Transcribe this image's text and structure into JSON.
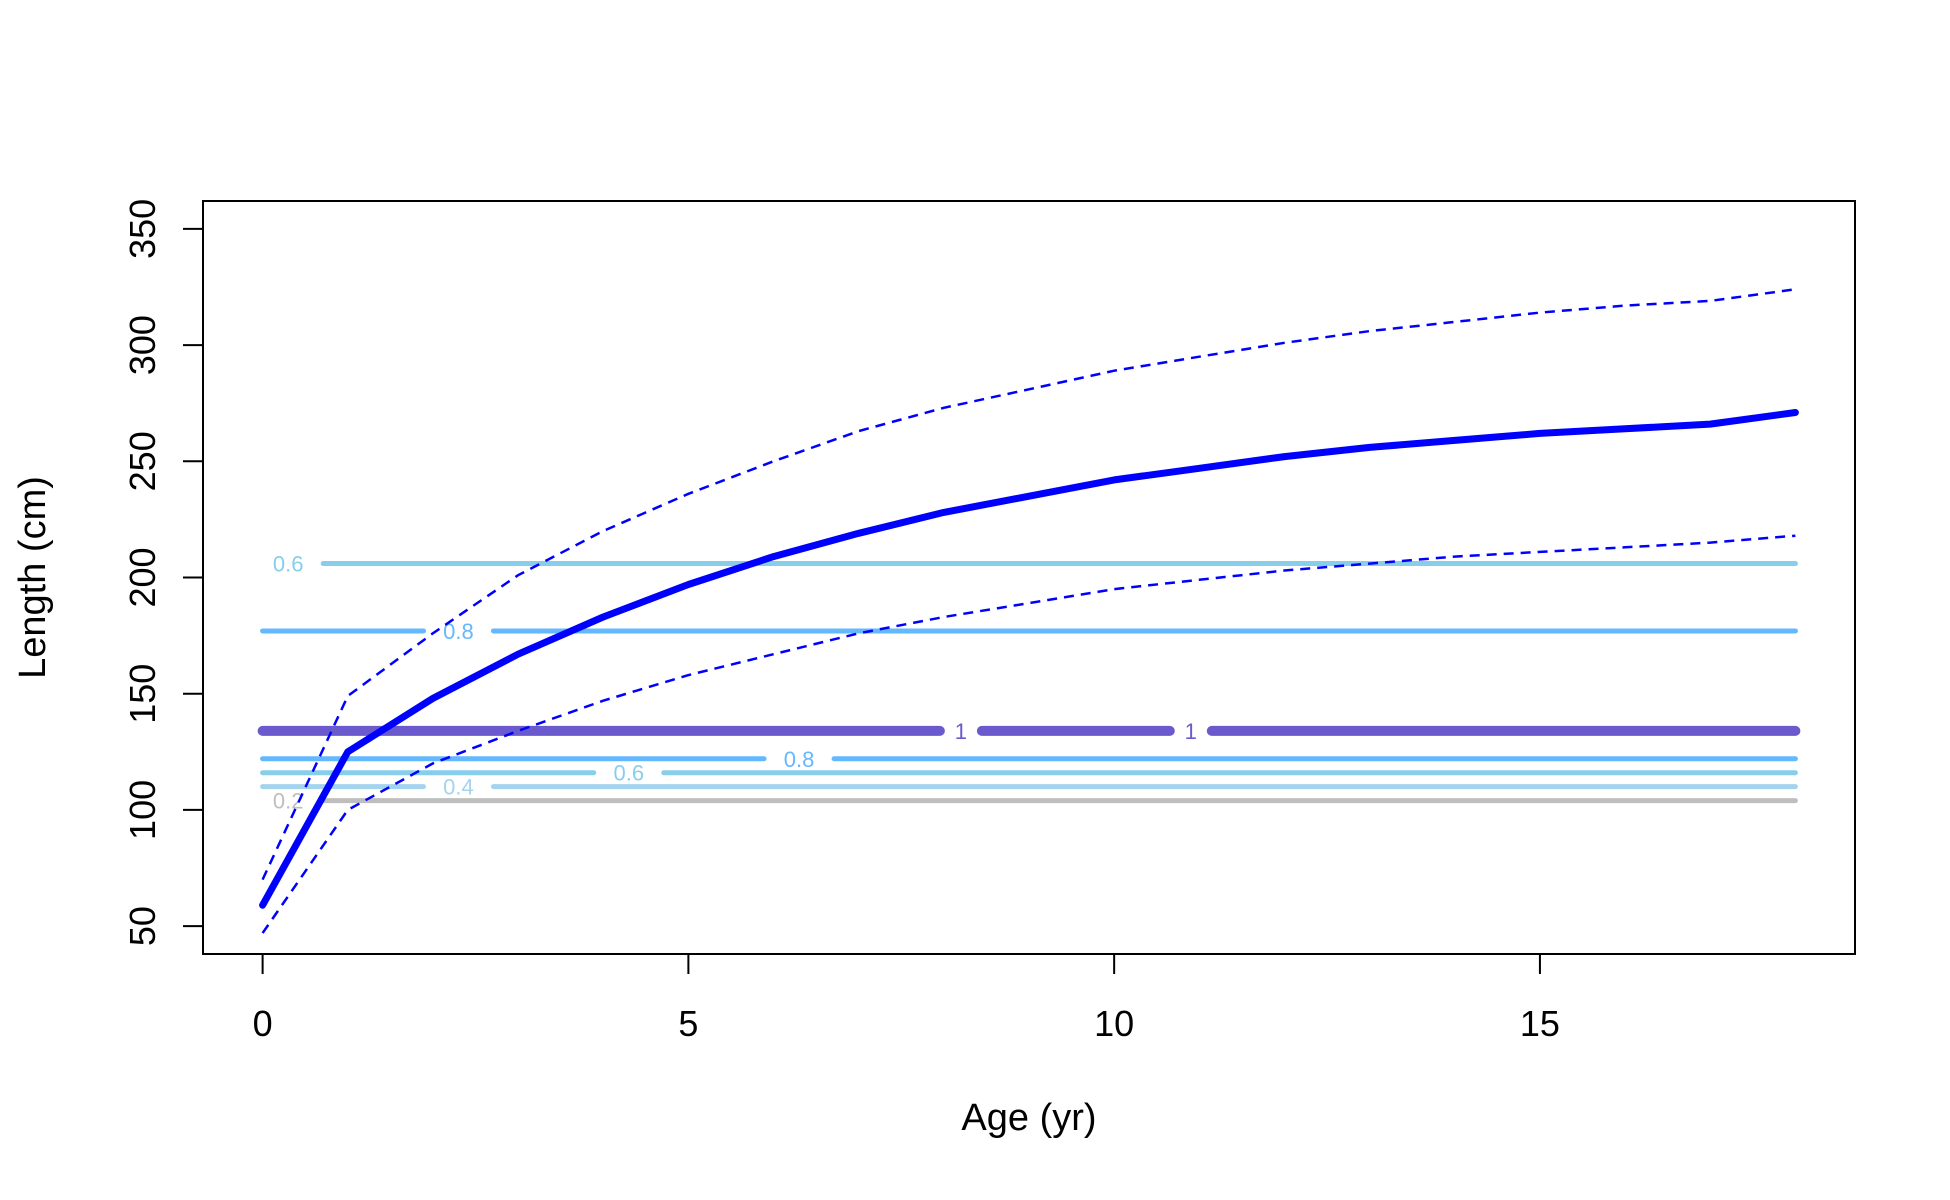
{
  "chart_data": {
    "type": "line",
    "title": "",
    "xlabel": "Age (yr)",
    "ylabel": "Length (cm)",
    "xlim": [
      -0.7,
      18.7
    ],
    "ylim": [
      38,
      362
    ],
    "x_ticks": [
      0,
      5,
      10,
      15
    ],
    "y_ticks": [
      50,
      100,
      150,
      200,
      250,
      300,
      350
    ],
    "grid": false,
    "legend": "none",
    "series": [
      {
        "style": "solid",
        "color": "#0000FF",
        "points": [
          [
            0,
            59
          ],
          [
            1,
            125
          ],
          [
            2,
            148
          ],
          [
            3,
            167
          ],
          [
            4,
            183
          ],
          [
            5,
            197
          ],
          [
            6,
            209
          ],
          [
            7,
            219
          ],
          [
            8,
            228
          ],
          [
            9,
            235
          ],
          [
            10,
            242
          ],
          [
            11,
            247
          ],
          [
            12,
            252
          ],
          [
            13,
            256
          ],
          [
            14,
            259
          ],
          [
            15,
            262
          ],
          [
            16,
            264
          ],
          [
            17,
            266
          ],
          [
            18,
            271
          ]
        ]
      },
      {
        "style": "dashed",
        "color": "#0000FF",
        "points": [
          [
            0,
            70
          ],
          [
            1,
            149
          ],
          [
            2,
            176
          ],
          [
            3,
            201
          ],
          [
            4,
            220
          ],
          [
            5,
            236
          ],
          [
            6,
            250
          ],
          [
            7,
            263
          ],
          [
            8,
            273
          ],
          [
            9,
            281
          ],
          [
            10,
            289
          ],
          [
            11,
            295
          ],
          [
            12,
            301
          ],
          [
            13,
            306
          ],
          [
            14,
            310
          ],
          [
            15,
            314
          ],
          [
            16,
            317
          ],
          [
            17,
            319
          ],
          [
            18,
            324
          ]
        ]
      },
      {
        "style": "dashed",
        "color": "#0000FF",
        "points": [
          [
            0,
            47
          ],
          [
            1,
            100
          ],
          [
            2,
            120
          ],
          [
            3,
            134
          ],
          [
            4,
            147
          ],
          [
            5,
            158
          ],
          [
            6,
            167
          ],
          [
            7,
            176
          ],
          [
            8,
            183
          ],
          [
            9,
            189
          ],
          [
            10,
            195
          ],
          [
            11,
            199
          ],
          [
            12,
            203
          ],
          [
            13,
            206
          ],
          [
            14,
            209
          ],
          [
            15,
            211
          ],
          [
            16,
            213
          ],
          [
            17,
            215
          ],
          [
            18,
            218
          ]
        ]
      }
    ],
    "contours": [
      {
        "y": 206,
        "label": "0.6",
        "color": "#87CEEB",
        "width": 5,
        "labels_at": [
          0.3
        ]
      },
      {
        "y": 177,
        "label": "0.8",
        "color": "#63B8FF",
        "width": 5,
        "labels_at": [
          2.3
        ]
      },
      {
        "y": 134,
        "label": "1",
        "color": "#6A5ACD",
        "width": 10,
        "labels_at": [
          8.2,
          10.9
        ]
      },
      {
        "y": 122,
        "label": "0.8",
        "color": "#63B8FF",
        "width": 5,
        "labels_at": [
          6.3
        ]
      },
      {
        "y": 116,
        "label": "0.6",
        "color": "#87CEEB",
        "width": 5,
        "labels_at": [
          4.3
        ]
      },
      {
        "y": 110,
        "label": "0.4",
        "color": "#A4D3EE",
        "width": 5,
        "labels_at": [
          2.3
        ]
      },
      {
        "y": 104,
        "label": "0.2",
        "color": "#BEBEBE",
        "width": 5,
        "labels_at": [
          0.3
        ]
      }
    ]
  }
}
